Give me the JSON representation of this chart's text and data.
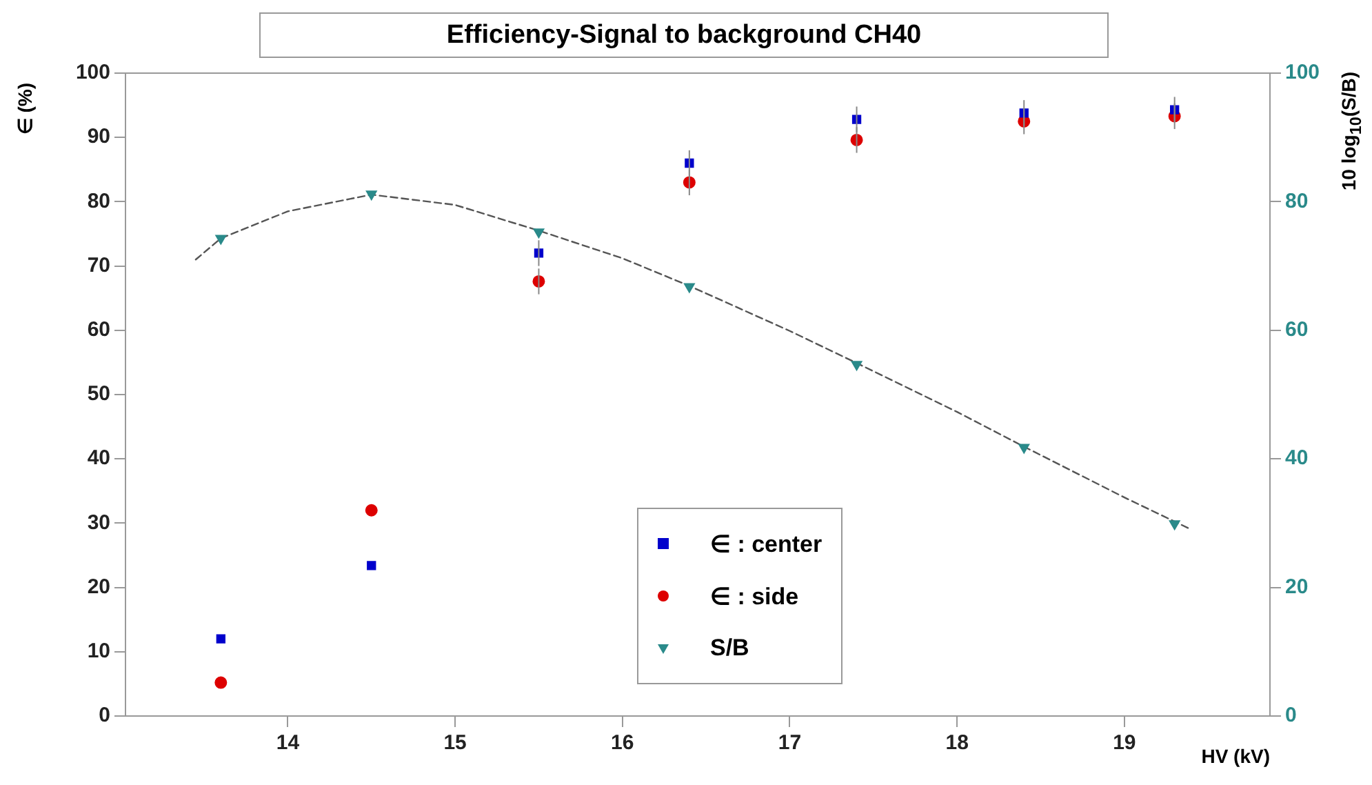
{
  "chart_data": {
    "type": "scatter",
    "title": "Efficiency-Signal to background CH40",
    "xlabel": "HV (kV)",
    "ylabel": "∈ (%)",
    "y2label": "10 log$_{10}$(S/B)",
    "xlim": [
      13.03,
      19.87
    ],
    "xticks": [
      14,
      15,
      16,
      17,
      18,
      19
    ],
    "ylim": [
      0,
      100
    ],
    "yticks": [
      0,
      10,
      20,
      30,
      40,
      50,
      60,
      70,
      80,
      90,
      100
    ],
    "y2lim": [
      0,
      100
    ],
    "y2ticks": [
      0,
      20,
      40,
      60,
      80,
      100
    ],
    "grid": false,
    "legend": "bottom",
    "series": [
      {
        "name": "∈ : center",
        "marker": "square",
        "color": "#0000cc",
        "x": [
          13.6,
          14.5,
          15.5,
          16.4,
          17.4,
          18.4,
          19.3
        ],
        "values": [
          12,
          23.4,
          72,
          86,
          92.8,
          93.8,
          94.3
        ],
        "errors": [
          null,
          null,
          2,
          2,
          2,
          2,
          2
        ]
      },
      {
        "name": "∈ : side",
        "marker": "circle",
        "color": "#dd0000",
        "x": [
          13.6,
          14.5,
          15.5,
          16.4,
          17.4,
          18.4,
          19.3
        ],
        "values": [
          5.2,
          32,
          67.6,
          83,
          89.6,
          92.5,
          93.3
        ],
        "errors": [
          null,
          null,
          2,
          2,
          2,
          2,
          2
        ]
      },
      {
        "name": "S/B",
        "marker": "triangle",
        "axis": "y2",
        "color": "#2a8a8a",
        "x": [
          13.6,
          14.5,
          15.5,
          16.4,
          17.4,
          18.4,
          19.3
        ],
        "values": [
          74.3,
          81.2,
          75.3,
          66.8,
          54.7,
          41.8,
          29.9
        ]
      },
      {
        "type": "line",
        "marker": "none",
        "line_style": "dashed",
        "axis": "y2",
        "color": "#555555",
        "x": [
          13.45,
          13.6,
          14.0,
          14.5,
          15.0,
          15.5,
          16.0,
          16.4,
          17.0,
          17.4,
          18.0,
          18.4,
          19.0,
          19.4
        ],
        "values": [
          71,
          74.3,
          78.5,
          81.1,
          79.5,
          75.5,
          71.2,
          66.9,
          59.9,
          54.9,
          47.3,
          41.9,
          34,
          29
        ]
      }
    ]
  }
}
